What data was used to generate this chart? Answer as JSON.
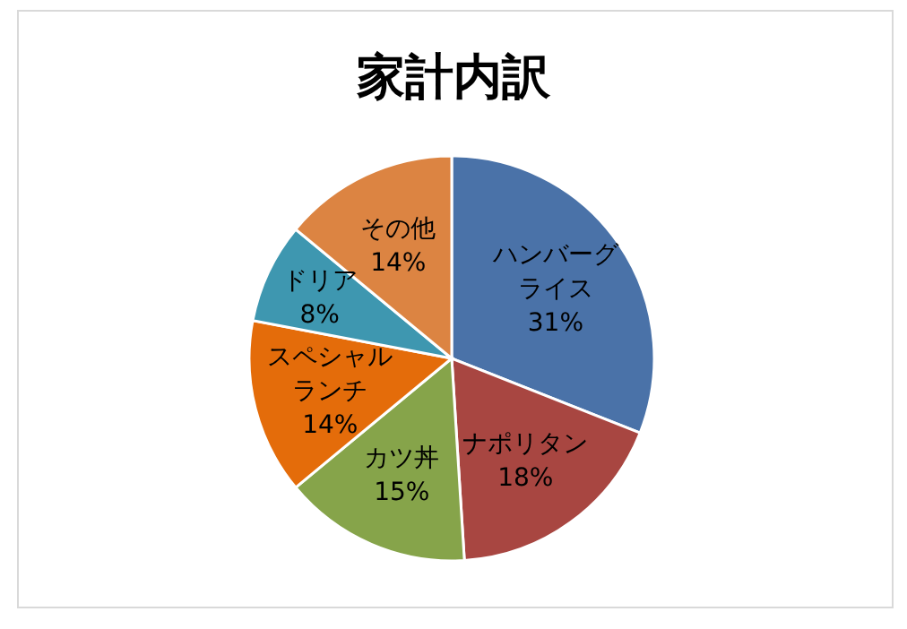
{
  "chart_data": {
    "type": "pie",
    "title": "家計内訳",
    "categories": [
      "ハンバーグライス",
      "ナポリタン",
      "カツ丼",
      "スペシャルランチ",
      "ドリア",
      "その他"
    ],
    "values": [
      31,
      18,
      15,
      14,
      8,
      14
    ],
    "value_labels": [
      "31%",
      "18%",
      "15%",
      "14%",
      "8%",
      "14%"
    ],
    "colors": [
      "#4a72a8",
      "#a84641",
      "#86a44a",
      "#e46c0a",
      "#3e97b0",
      "#dc8442"
    ]
  }
}
